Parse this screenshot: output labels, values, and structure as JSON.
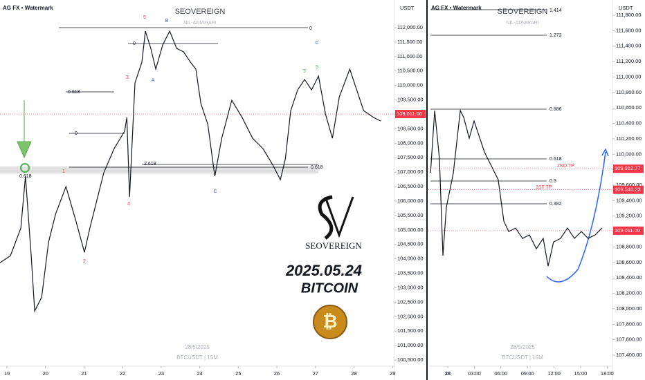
{
  "chart_data": [
    {
      "type": "line",
      "watermark": "AG FX • Watermark",
      "title": "SEOVEREIGN",
      "subtitle": "NIL-ADMIRARI",
      "y_unit": "USDT",
      "footer_date": "28/5/2025",
      "footer_symbol": "BTCUSDT | 15M",
      "brand": "SEOVEREIGN",
      "date_label": "2025.05.24",
      "asset_label": "BITCOIN",
      "color": "#131722",
      "x": [
        18.82,
        19.09,
        19.36,
        19.48,
        19.63,
        19.72,
        19.9,
        20.08,
        20.26,
        20.53,
        20.79,
        21.01,
        21.15,
        21.33,
        21.51,
        21.78,
        22.05,
        22.11,
        22.18,
        22.32,
        22.5,
        22.59,
        22.73,
        22.86,
        23.04,
        23.22,
        23.4,
        23.58,
        23.76,
        23.9,
        24.03,
        24.21,
        24.39,
        24.57,
        24.83,
        25.1,
        25.37,
        25.64,
        25.91,
        26.09,
        26.22,
        26.36,
        26.54,
        26.72,
        26.9,
        27.08,
        27.26,
        27.44,
        27.62,
        27.89,
        28.07,
        28.25,
        28.51,
        28.69
      ],
      "values": [
        103867,
        104106,
        105063,
        106857,
        104106,
        102192,
        102670,
        104584,
        105541,
        106498,
        105302,
        104225,
        105063,
        106019,
        106976,
        107813,
        108412,
        108890,
        106139,
        110086,
        110804,
        111880,
        111282,
        110565,
        111402,
        111880,
        111282,
        111163,
        110804,
        110565,
        109368,
        108651,
        106857,
        108172,
        109488,
        108890,
        108172,
        107813,
        107215,
        106737,
        107455,
        109129,
        109847,
        110206,
        109847,
        110325,
        109009,
        108172,
        109608,
        110565,
        109847,
        109129,
        108890,
        108771
      ],
      "xlim": [
        18.82,
        29.05
      ],
      "xticks": [
        19,
        20,
        21,
        22,
        23,
        24,
        25,
        26,
        27,
        28,
        29
      ],
      "ylim": [
        100285,
        112957
      ],
      "yticks": [
        {
          "value": 100500,
          "label": "100,500.00"
        },
        {
          "value": 101000,
          "label": "101,000.00"
        },
        {
          "value": 101500,
          "label": "101,500.00"
        },
        {
          "value": 102000,
          "label": "102,000.00"
        },
        {
          "value": 102500,
          "label": "102,500.00"
        },
        {
          "value": 103000,
          "label": "103,000.00"
        },
        {
          "value": 103500,
          "label": "103,500.00"
        },
        {
          "value": 104000,
          "label": "104,000.00"
        },
        {
          "value": 104500,
          "label": "104,500.00"
        },
        {
          "value": 105000,
          "label": "105,000.00"
        },
        {
          "value": 105500,
          "label": "105,500.00"
        },
        {
          "value": 106000,
          "label": "106,000.00"
        },
        {
          "value": 106500,
          "label": "106,500.00"
        },
        {
          "value": 107000,
          "label": "107,000.00"
        },
        {
          "value": 107500,
          "label": "107,500.00"
        },
        {
          "value": 108000,
          "label": "108,000.00"
        },
        {
          "value": 108500,
          "label": "108,500.00"
        },
        {
          "value": 109000,
          "label": "109,000.00"
        },
        {
          "value": 109500,
          "label": "109,500.00"
        },
        {
          "value": 110000,
          "label": "110,000.00"
        },
        {
          "value": 110500,
          "label": "110,500.00"
        },
        {
          "value": 111000,
          "label": "111,000.00"
        },
        {
          "value": 111500,
          "label": "111,500.00"
        },
        {
          "value": 112000,
          "label": "112,000.00"
        }
      ],
      "price_tags": [
        {
          "value": 109011,
          "label": "109,011.00",
          "color": "#f23645"
        }
      ],
      "annotations": [
        "0",
        "0.618",
        "0",
        "2.618",
        "0.618",
        "0",
        "0.618",
        "1",
        "2",
        "3",
        "4",
        "5",
        "A",
        "B",
        "C",
        "3",
        "5",
        "C"
      ]
    },
    {
      "type": "line",
      "watermark": "AG FX • Watermark",
      "title": "SEOVEREIGN",
      "subtitle": "NIL-ADMIRARI",
      "y_unit": "USDT",
      "footer_date": "28/5/2025",
      "footer_symbol": "BTCUSDT | 15M",
      "color": "#131722",
      "x": [
        -1.95,
        -1.48,
        -0.94,
        -0.55,
        -0.16,
        0.63,
        1.41,
        1.8,
        2.42,
        2.97,
        3.36,
        4.14,
        4.92,
        5.7,
        6.33,
        6.88,
        7.66,
        8.44,
        9.22,
        10.0,
        10.78,
        11.33,
        11.95,
        12.73,
        13.52,
        14.3,
        15.08,
        15.86,
        16.64,
        17.42
      ],
      "values": [
        109761,
        110566,
        109940,
        108688,
        109314,
        109761,
        110566,
        110476,
        110208,
        110432,
        110297,
        110029,
        109850,
        109671,
        109135,
        109000,
        109045,
        108911,
        108956,
        108777,
        108911,
        108553,
        108866,
        108911,
        109045,
        108911,
        109000,
        108911,
        108956,
        109045
      ],
      "xlim": [
        -2.19,
        18.6
      ],
      "xticks": [
        {
          "value": 0,
          "label": "28"
        },
        {
          "value": 3,
          "label": "03:00"
        },
        {
          "value": 6,
          "label": "06:00"
        },
        {
          "value": 9,
          "label": "09:00"
        },
        {
          "value": 12,
          "label": "12:00"
        },
        {
          "value": 15,
          "label": "15:00"
        },
        {
          "value": 18,
          "label": "18:00"
        }
      ],
      "ylim": [
        107257,
        111997
      ],
      "yticks": [
        {
          "value": 107400,
          "label": "107,400.00"
        },
        {
          "value": 107600,
          "label": "107,600.00"
        },
        {
          "value": 107800,
          "label": "107,800.00"
        },
        {
          "value": 108000,
          "label": "108,000.00"
        },
        {
          "value": 108200,
          "label": "108,200.00"
        },
        {
          "value": 108400,
          "label": "108,400.00"
        },
        {
          "value": 108600,
          "label": "108,600.00"
        },
        {
          "value": 108800,
          "label": "108,800.00"
        },
        {
          "value": 109000,
          "label": "109,000.00"
        },
        {
          "value": 109200,
          "label": "109,200.00"
        },
        {
          "value": 109400,
          "label": "109,400.00"
        },
        {
          "value": 109600,
          "label": "109,600.00"
        },
        {
          "value": 109800,
          "label": "109,800.00"
        },
        {
          "value": 110000,
          "label": "110,000.00"
        },
        {
          "value": 110200,
          "label": "110,200.00"
        },
        {
          "value": 110400,
          "label": "110,400.00"
        },
        {
          "value": 110600,
          "label": "110,600.00"
        },
        {
          "value": 110800,
          "label": "110,800.00"
        },
        {
          "value": 111000,
          "label": "111,000.00"
        },
        {
          "value": 111200,
          "label": "111,200.00"
        },
        {
          "value": 111400,
          "label": "111,400.00"
        },
        {
          "value": 111600,
          "label": "111,600.00"
        },
        {
          "value": 111800,
          "label": "111,800.00"
        }
      ],
      "price_tags": [
        {
          "value": 109812.77,
          "label": "109,812.77",
          "color": "#f23645"
        },
        {
          "value": 109540.23,
          "label": "109,540.23",
          "color": "#f23645"
        },
        {
          "value": 109011,
          "label": "109,011.00",
          "color": "#f23645"
        }
      ],
      "annotations": [
        "1.414",
        "1.272",
        "0.886",
        "0.618",
        "0.5",
        "0.382",
        "2ND TP",
        "1ST TP"
      ]
    }
  ]
}
